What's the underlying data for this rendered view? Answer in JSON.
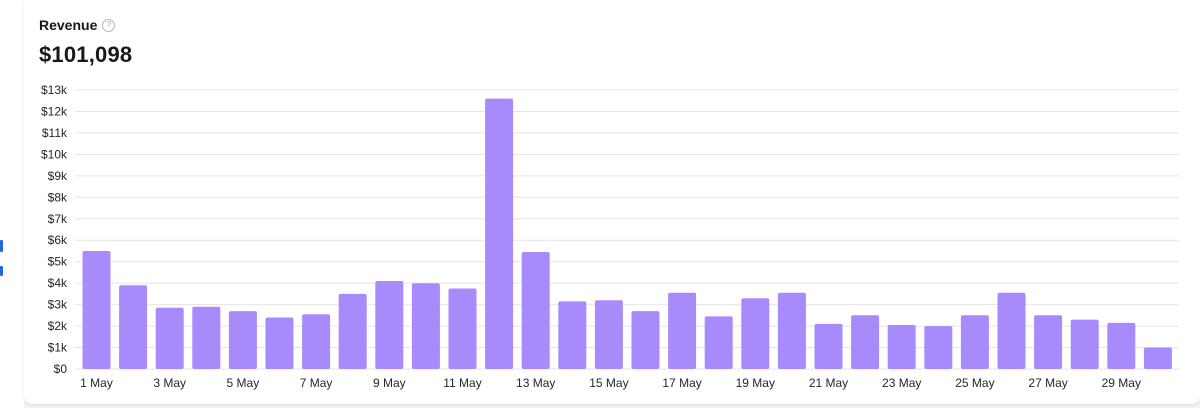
{
  "card": {
    "title": "Revenue",
    "help_icon": "question-circle-icon",
    "total": "$101,098"
  },
  "colors": {
    "bar": "#a78bfa",
    "grid": "#e4e4e7"
  },
  "chart_data": {
    "type": "bar",
    "title": "Revenue",
    "xlabel": "",
    "ylabel": "",
    "ylim": [
      0,
      13000
    ],
    "grid": true,
    "y_ticks": [
      0,
      1000,
      2000,
      3000,
      4000,
      5000,
      6000,
      7000,
      8000,
      9000,
      10000,
      11000,
      12000,
      13000
    ],
    "y_tick_labels": [
      "$0",
      "$1k",
      "$2k",
      "$3k",
      "$4k",
      "$5k",
      "$6k",
      "$7k",
      "$8k",
      "$9k",
      "$10k",
      "$11k",
      "$12k",
      "$13k"
    ],
    "categories": [
      "1 May",
      "2 May",
      "3 May",
      "4 May",
      "5 May",
      "6 May",
      "7 May",
      "8 May",
      "9 May",
      "10 May",
      "11 May",
      "12 May",
      "13 May",
      "14 May",
      "15 May",
      "16 May",
      "17 May",
      "18 May",
      "19 May",
      "20 May",
      "21 May",
      "22 May",
      "23 May",
      "24 May",
      "25 May",
      "26 May",
      "27 May",
      "28 May",
      "29 May",
      "30 May"
    ],
    "x_tick_labels": [
      "1 May",
      "3 May",
      "5 May",
      "7 May",
      "9 May",
      "11 May",
      "13 May",
      "15 May",
      "17 May",
      "19 May",
      "21 May",
      "23 May",
      "25 May",
      "27 May",
      "29 May"
    ],
    "values": [
      5500,
      3900,
      2850,
      2900,
      2700,
      2400,
      2550,
      3500,
      4100,
      4000,
      3750,
      12600,
      5450,
      3150,
      3200,
      2700,
      3550,
      2450,
      3300,
      3550,
      2100,
      2500,
      2050,
      2000,
      2500,
      3550,
      2500,
      2300,
      2150,
      1000
    ]
  }
}
